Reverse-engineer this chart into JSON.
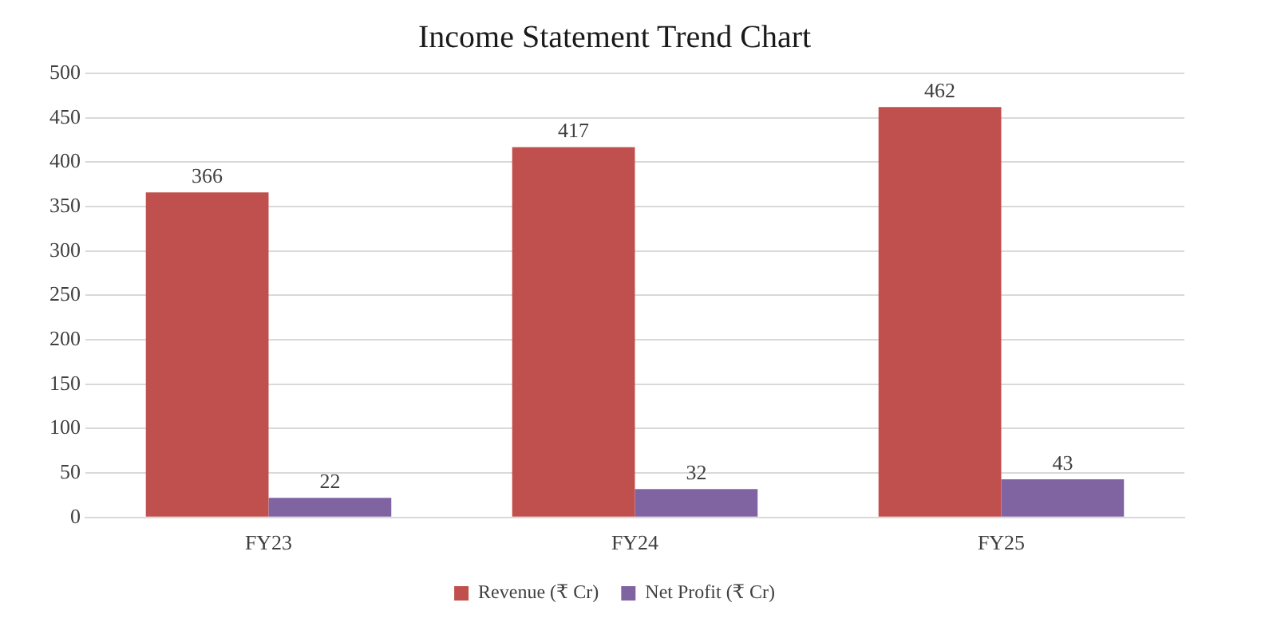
{
  "chart_data": {
    "type": "bar",
    "title": "Income Statement Trend Chart",
    "categories": [
      "FY23",
      "FY24",
      "FY25"
    ],
    "series": [
      {
        "name": "Revenue (₹ Cr)",
        "color": "#c0504d",
        "values": [
          366,
          417,
          462
        ]
      },
      {
        "name": "Net Profit (₹ Cr)",
        "color": "#8064a2",
        "values": [
          22,
          32,
          43
        ]
      }
    ],
    "ylim": [
      0,
      500
    ],
    "yticks": [
      0,
      50,
      100,
      150,
      200,
      250,
      300,
      350,
      400,
      450,
      500
    ],
    "grid": "y",
    "legend": "bottom",
    "data_labels": true
  }
}
